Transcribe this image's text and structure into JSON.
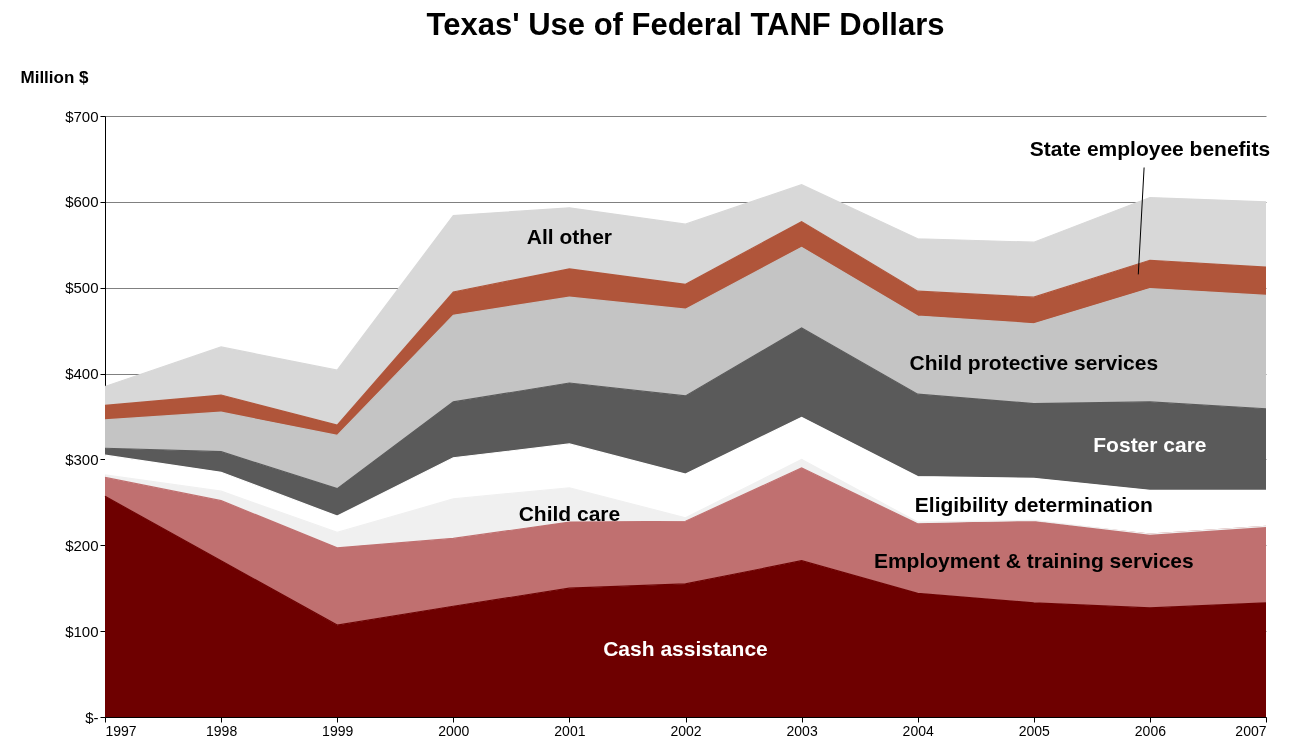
{
  "chart_data": {
    "type": "area",
    "title": "Texas' Use of Federal TANF Dollars",
    "ylabel": "Million $",
    "stacked": true,
    "grid": "y",
    "legend": false,
    "x": [
      1997,
      1998,
      1999,
      2000,
      2001,
      2002,
      2003,
      2004,
      2005,
      2006,
      2007
    ],
    "xlim": [
      1997,
      2007
    ],
    "xticks": [
      1997,
      1998,
      1999,
      2000,
      2001,
      2002,
      2003,
      2004,
      2005,
      2006,
      2007
    ],
    "ylim": [
      0,
      700
    ],
    "yticks": [
      {
        "value": 0,
        "label": "$-"
      },
      {
        "value": 100,
        "label": "$100"
      },
      {
        "value": 200,
        "label": "$200"
      },
      {
        "value": 300,
        "label": "$300"
      },
      {
        "value": 400,
        "label": "$400"
      },
      {
        "value": 500,
        "label": "$500"
      },
      {
        "value": 600,
        "label": "$600"
      },
      {
        "value": 700,
        "label": "$700"
      }
    ],
    "series": [
      {
        "name": "Cash assistance",
        "color": "#6e0000",
        "values": [
          257,
          182,
          107,
          129,
          150,
          155,
          182,
          144,
          133,
          127,
          133
        ]
      },
      {
        "name": "Employment & training services",
        "color": "#c07070",
        "values": [
          22,
          70,
          90,
          79,
          77,
          73,
          108,
          81,
          95,
          86,
          89
        ]
      },
      {
        "name": "Child care",
        "color": "#f0f0f0",
        "values": [
          3,
          11,
          18,
          46,
          40,
          4,
          10,
          2,
          1,
          0,
          0
        ]
      },
      {
        "name": "Eligibility determination",
        "color": "#ffffff",
        "values": [
          23,
          22,
          19,
          48,
          51,
          51,
          49,
          53,
          49,
          51,
          42
        ]
      },
      {
        "name": "Foster care",
        "color": "#5a5a5a",
        "values": [
          8,
          24,
          32,
          65,
          71,
          91,
          104,
          96,
          87,
          103,
          95
        ]
      },
      {
        "name": "Child protective services",
        "color": "#c4c4c4",
        "values": [
          33,
          46,
          62,
          101,
          100,
          101,
          94,
          91,
          93,
          132,
          132
        ]
      },
      {
        "name": "State employee benefits",
        "color": "#b0553a",
        "values": [
          17,
          20,
          12,
          27,
          33,
          29,
          30,
          29,
          31,
          33,
          33
        ]
      },
      {
        "name": "All other",
        "color": "#d8d8d8",
        "values": [
          22,
          56,
          64,
          89,
          71,
          70,
          43,
          61,
          64,
          73,
          76
        ]
      }
    ]
  }
}
